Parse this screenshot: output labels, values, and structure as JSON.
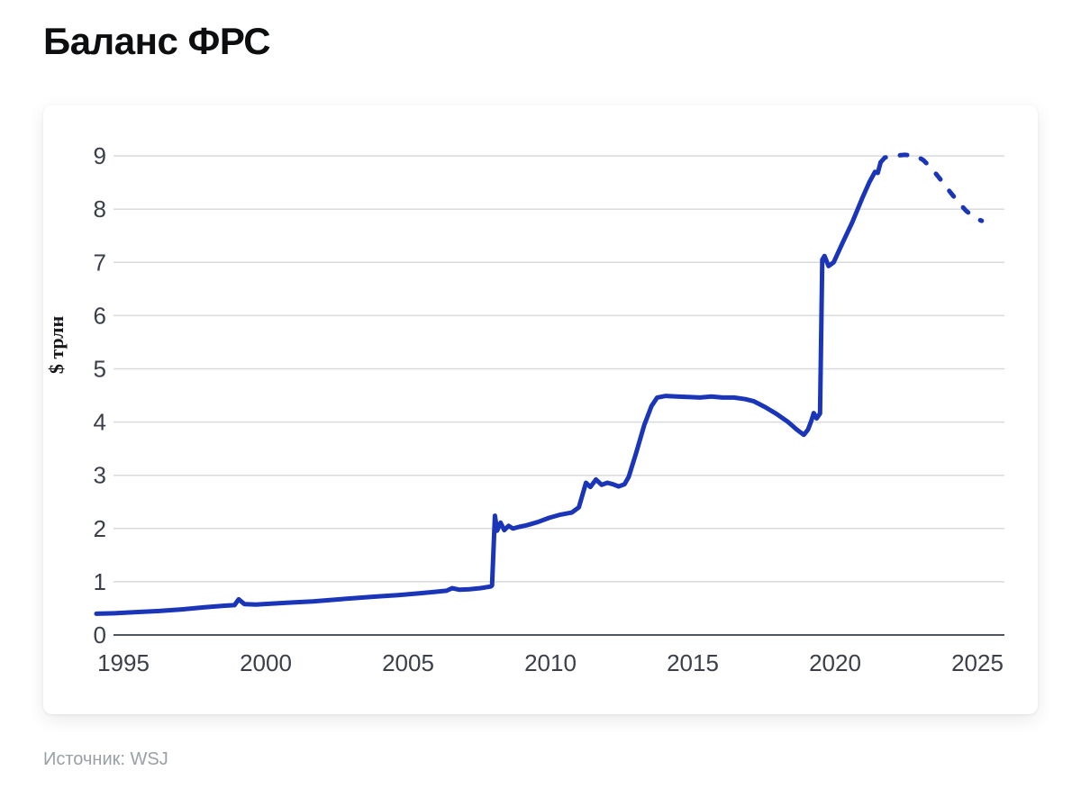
{
  "page": {
    "title": "Баланс ФРС",
    "source": "Источник: WSJ"
  },
  "chart_data": {
    "type": "line",
    "title": "Баланс ФРС",
    "xlabel": "",
    "ylabel": "$ трлн",
    "x_ticks": [
      1995,
      2000,
      2005,
      2010,
      2015,
      2020,
      2025
    ],
    "y_ticks": [
      0,
      1,
      2,
      3,
      4,
      5,
      6,
      7,
      8,
      9
    ],
    "xlim": [
      1995,
      2026.2
    ],
    "ylim": [
      0,
      9.6
    ],
    "grid": true,
    "legend": false,
    "colors": {
      "line": "#1a35b8",
      "grid": "#d9dadc",
      "axis": "#51555e",
      "tick_text": "#3a3f4a"
    },
    "series": [
      {
        "style": "solid",
        "points": [
          [
            1995.0,
            0.4
          ],
          [
            1995.7,
            0.41
          ],
          [
            1996.4,
            0.43
          ],
          [
            1997.2,
            0.45
          ],
          [
            1998.0,
            0.48
          ],
          [
            1998.8,
            0.52
          ],
          [
            1999.5,
            0.55
          ],
          [
            1999.85,
            0.56
          ],
          [
            2000.0,
            0.67
          ],
          [
            2000.2,
            0.58
          ],
          [
            2000.6,
            0.57
          ],
          [
            2001.2,
            0.59
          ],
          [
            2001.9,
            0.61
          ],
          [
            2002.6,
            0.63
          ],
          [
            2003.3,
            0.66
          ],
          [
            2004.0,
            0.69
          ],
          [
            2004.8,
            0.72
          ],
          [
            2005.6,
            0.75
          ],
          [
            2006.3,
            0.78
          ],
          [
            2006.9,
            0.81
          ],
          [
            2007.3,
            0.83
          ],
          [
            2007.5,
            0.88
          ],
          [
            2007.75,
            0.85
          ],
          [
            2008.1,
            0.86
          ],
          [
            2008.5,
            0.88
          ],
          [
            2008.85,
            0.91
          ],
          [
            2008.9,
            0.93
          ],
          [
            2009.0,
            2.24
          ],
          [
            2009.08,
            1.96
          ],
          [
            2009.2,
            2.11
          ],
          [
            2009.33,
            1.97
          ],
          [
            2009.48,
            2.05
          ],
          [
            2009.63,
            2.0
          ],
          [
            2009.85,
            2.03
          ],
          [
            2010.1,
            2.06
          ],
          [
            2010.5,
            2.12
          ],
          [
            2010.9,
            2.2
          ],
          [
            2011.3,
            2.26
          ],
          [
            2011.7,
            2.3
          ],
          [
            2011.95,
            2.4
          ],
          [
            2012.2,
            2.86
          ],
          [
            2012.35,
            2.78
          ],
          [
            2012.55,
            2.92
          ],
          [
            2012.75,
            2.82
          ],
          [
            2012.95,
            2.86
          ],
          [
            2013.15,
            2.83
          ],
          [
            2013.35,
            2.79
          ],
          [
            2013.55,
            2.83
          ],
          [
            2013.7,
            2.97
          ],
          [
            2013.95,
            3.4
          ],
          [
            2014.25,
            3.95
          ],
          [
            2014.5,
            4.3
          ],
          [
            2014.7,
            4.46
          ],
          [
            2015.0,
            4.49
          ],
          [
            2015.4,
            4.48
          ],
          [
            2015.8,
            4.47
          ],
          [
            2016.2,
            4.46
          ],
          [
            2016.6,
            4.48
          ],
          [
            2017.0,
            4.46
          ],
          [
            2017.4,
            4.46
          ],
          [
            2017.8,
            4.43
          ],
          [
            2018.1,
            4.39
          ],
          [
            2018.5,
            4.28
          ],
          [
            2018.9,
            4.15
          ],
          [
            2019.3,
            4.0
          ],
          [
            2019.6,
            3.86
          ],
          [
            2019.85,
            3.76
          ],
          [
            2020.0,
            3.86
          ],
          [
            2020.12,
            4.03
          ],
          [
            2020.2,
            4.17
          ],
          [
            2020.3,
            4.07
          ],
          [
            2020.42,
            4.16
          ],
          [
            2020.5,
            7.05
          ],
          [
            2020.58,
            7.12
          ],
          [
            2020.72,
            6.93
          ],
          [
            2020.9,
            7.0
          ],
          [
            2021.2,
            7.35
          ],
          [
            2021.55,
            7.75
          ],
          [
            2021.9,
            8.2
          ],
          [
            2022.15,
            8.5
          ],
          [
            2022.35,
            8.7
          ],
          [
            2022.45,
            8.68
          ],
          [
            2022.55,
            8.88
          ]
        ]
      },
      {
        "style": "dashed",
        "points": [
          [
            2022.55,
            8.88
          ],
          [
            2022.7,
            8.97
          ],
          [
            2023.0,
            9.0
          ],
          [
            2023.4,
            9.02
          ],
          [
            2023.8,
            9.0
          ],
          [
            2024.05,
            8.92
          ],
          [
            2024.35,
            8.76
          ],
          [
            2024.65,
            8.56
          ],
          [
            2024.95,
            8.35
          ],
          [
            2025.25,
            8.15
          ],
          [
            2025.55,
            7.97
          ],
          [
            2025.85,
            7.84
          ],
          [
            2026.1,
            7.78
          ]
        ]
      }
    ]
  }
}
